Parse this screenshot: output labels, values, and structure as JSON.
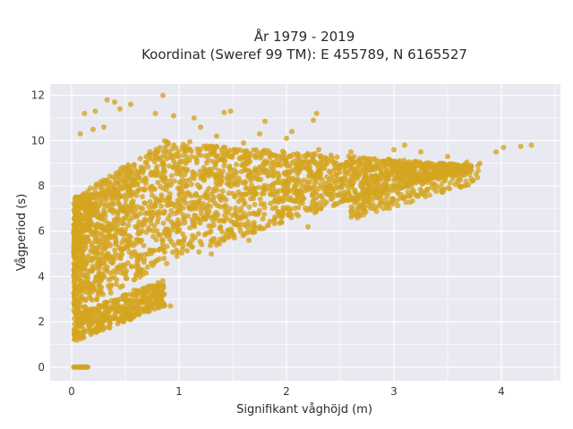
{
  "chart_data": {
    "type": "scatter",
    "title_line1": "År 1979 - 2019",
    "title_line2": "Koordinat (Sweref 99 TM): E 455789, N 6165527",
    "xlabel": "Signifikant våghöjd (m)",
    "ylabel": "Vågperiod (s)",
    "xlim": [
      -0.2,
      4.55
    ],
    "ylim": [
      -0.6,
      12.5
    ],
    "x_ticks": [
      0,
      1,
      2,
      3,
      4
    ],
    "y_ticks": [
      0,
      2,
      4,
      6,
      8,
      10,
      12
    ],
    "grid": true,
    "marker_color": "#d4a520",
    "plot_bg": "#e9e9f1",
    "outliers": [
      [
        0.85,
        12.0
      ],
      [
        0.33,
        11.8
      ],
      [
        0.4,
        11.7
      ],
      [
        0.55,
        11.6
      ],
      [
        0.22,
        11.3
      ],
      [
        0.45,
        11.4
      ],
      [
        0.78,
        11.2
      ],
      [
        1.48,
        11.3
      ],
      [
        1.42,
        11.25
      ],
      [
        0.12,
        11.2
      ],
      [
        1.14,
        11.0
      ],
      [
        0.95,
        11.1
      ],
      [
        2.28,
        11.2
      ],
      [
        1.8,
        10.85
      ],
      [
        1.2,
        10.6
      ],
      [
        2.25,
        10.9
      ],
      [
        0.08,
        10.3
      ],
      [
        0.2,
        10.5
      ],
      [
        2.05,
        10.4
      ],
      [
        1.75,
        10.3
      ],
      [
        1.35,
        10.2
      ],
      [
        2.0,
        10.1
      ],
      [
        1.6,
        9.9
      ],
      [
        3.0,
        9.6
      ],
      [
        3.25,
        9.5
      ],
      [
        3.5,
        9.3
      ],
      [
        3.68,
        9.05
      ],
      [
        3.8,
        9.0
      ],
      [
        3.95,
        9.5
      ],
      [
        4.02,
        9.7
      ],
      [
        4.18,
        9.75
      ],
      [
        4.28,
        9.8
      ],
      [
        3.1,
        9.8
      ],
      [
        2.6,
        9.5
      ],
      [
        2.3,
        9.6
      ],
      [
        0.9,
        9.9
      ],
      [
        0.58,
        3.4
      ],
      [
        0.92,
        2.7
      ],
      [
        1.65,
        5.6
      ],
      [
        1.3,
        5.0
      ],
      [
        2.2,
        6.2
      ],
      [
        2.6,
        6.9
      ],
      [
        2.85,
        7.5
      ],
      [
        3.2,
        8.3
      ],
      [
        3.3,
        9.0
      ],
      [
        2.9,
        9.1
      ],
      [
        2.45,
        8.9
      ],
      [
        1.88,
        9.0
      ],
      [
        1.1,
        9.95
      ],
      [
        0.3,
        10.6
      ]
    ],
    "zero_line": {
      "x_from": 0.02,
      "x_to": 0.15,
      "y": 0
    }
  }
}
